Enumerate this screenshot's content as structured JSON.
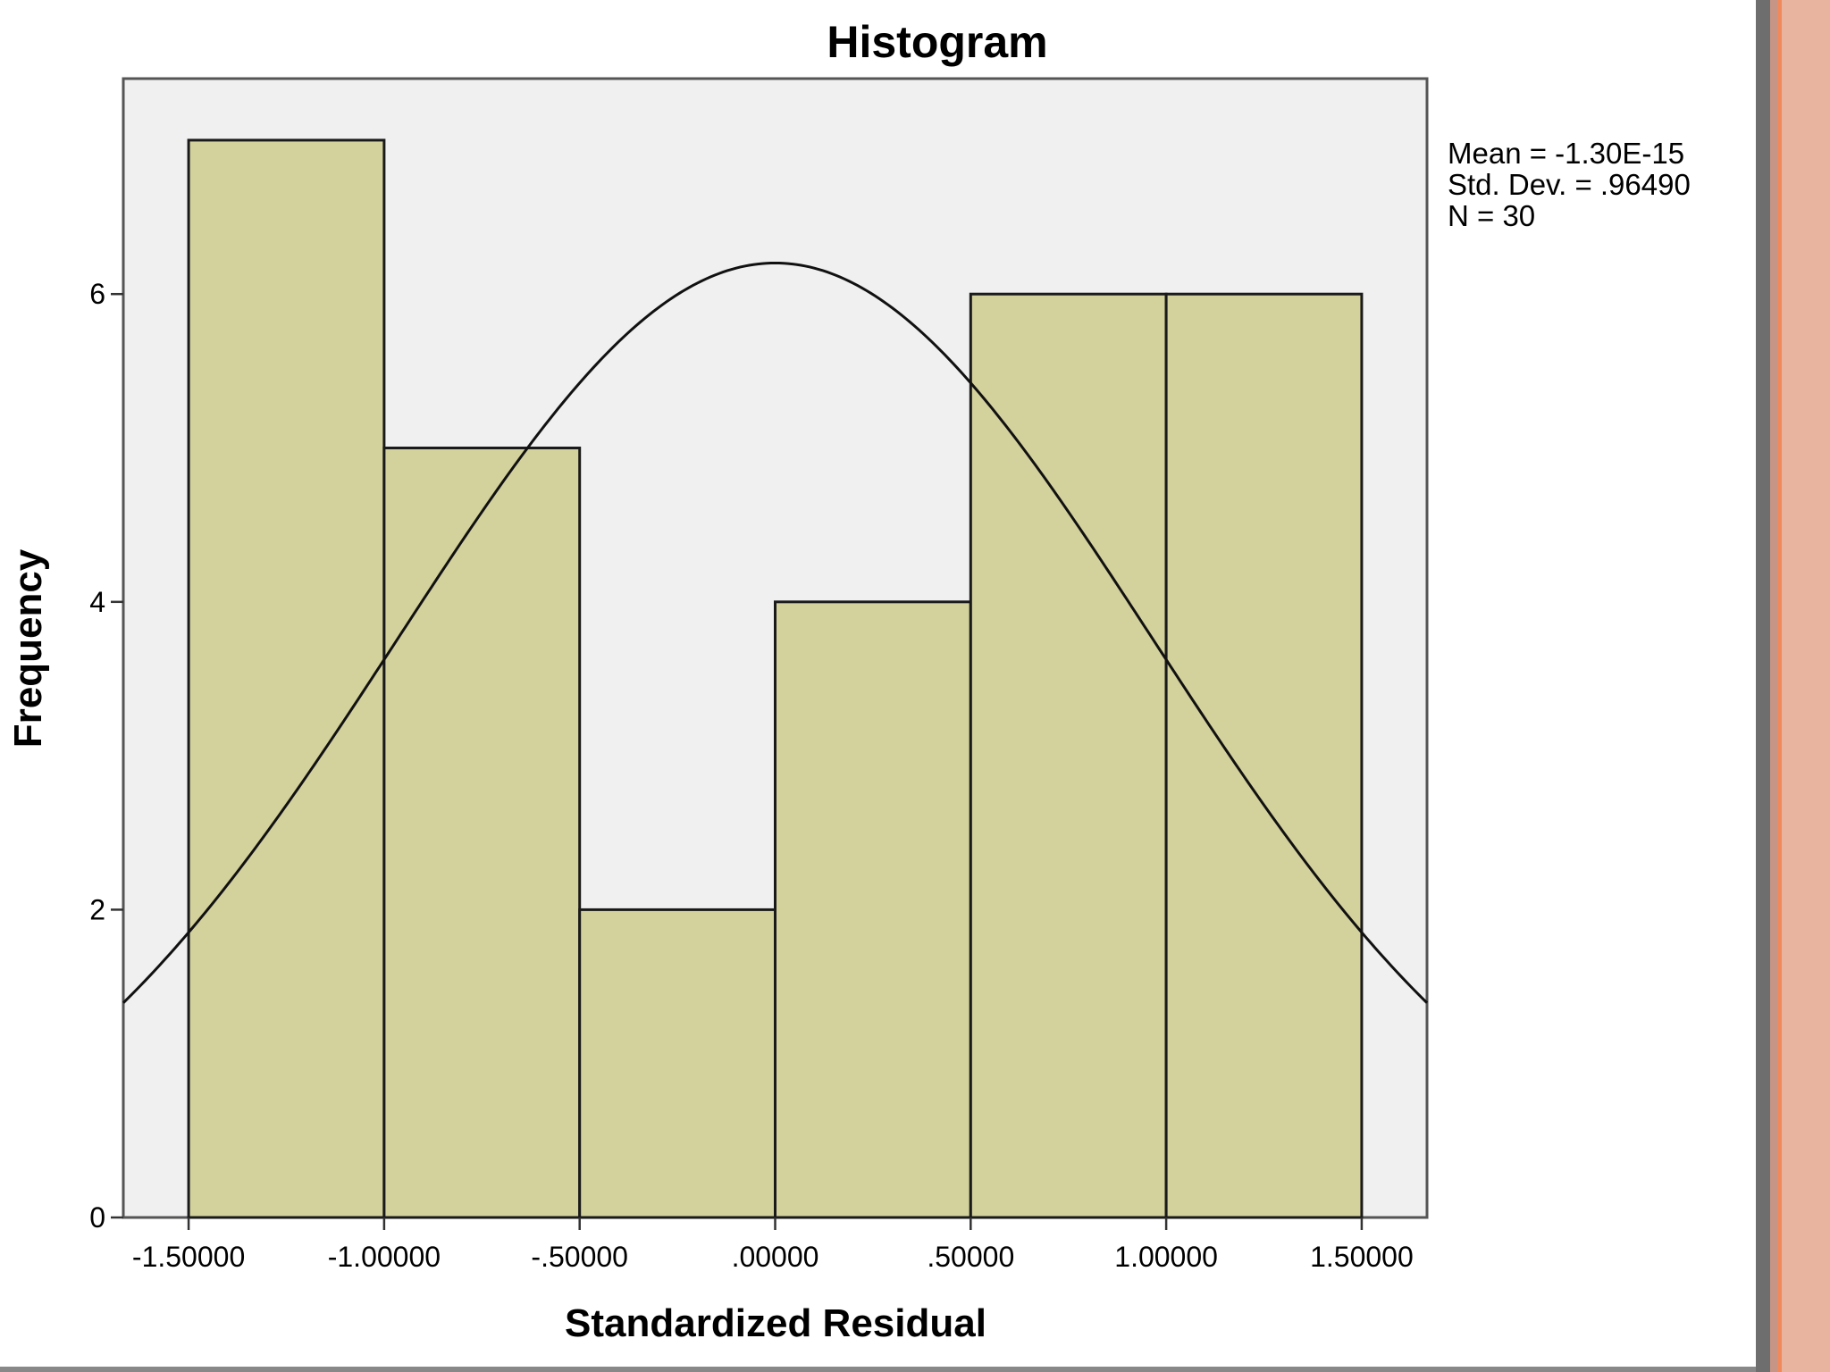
{
  "chart_data": {
    "type": "histogram",
    "title": "Histogram",
    "xlabel": "Standardized Residual",
    "ylabel": "Frequency",
    "xlim": [
      -1.667,
      1.667
    ],
    "ylim": [
      0,
      7.4
    ],
    "x_ticks": [
      {
        "value": -1.5,
        "label": "-1.50000"
      },
      {
        "value": -1.0,
        "label": "-1.00000"
      },
      {
        "value": -0.5,
        "label": "-.50000"
      },
      {
        "value": 0.0,
        "label": ".00000"
      },
      {
        "value": 0.5,
        "label": ".50000"
      },
      {
        "value": 1.0,
        "label": "1.00000"
      },
      {
        "value": 1.5,
        "label": "1.50000"
      }
    ],
    "y_ticks": [
      {
        "value": 0,
        "label": "0"
      },
      {
        "value": 2,
        "label": "2"
      },
      {
        "value": 4,
        "label": "4"
      },
      {
        "value": 6,
        "label": "6"
      }
    ],
    "bins": [
      {
        "x0": -1.5,
        "x1": -1.0,
        "count": 7
      },
      {
        "x0": -1.0,
        "x1": -0.5,
        "count": 5
      },
      {
        "x0": -0.5,
        "x1": 0.0,
        "count": 2
      },
      {
        "x0": 0.0,
        "x1": 0.5,
        "count": 4
      },
      {
        "x0": 0.5,
        "x1": 1.0,
        "count": 6
      },
      {
        "x0": 1.0,
        "x1": 1.5,
        "count": 6
      }
    ],
    "normal_curve": {
      "mean": -1.3e-15,
      "std_dev": 0.9649,
      "n": 30,
      "bin_width": 0.5
    },
    "stats": [
      "Mean = -1.30E-15",
      "Std. Dev. = .96490",
      "N = 30"
    ],
    "grid": false,
    "colors": {
      "bar_fill": "#d3d19c",
      "plot_background": "#f0f0f0",
      "right_border": "#e8b4a0"
    }
  }
}
